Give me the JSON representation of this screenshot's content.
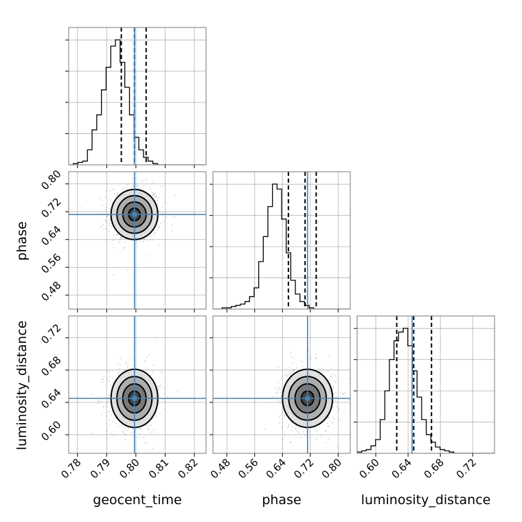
{
  "chart_data": {
    "type": "corner",
    "parameters": [
      {
        "name": "geocent_time",
        "label": "geocent_time",
        "range": [
          0.777,
          0.824
        ],
        "ticks": [
          0.78,
          0.79,
          0.8,
          0.81,
          0.82
        ],
        "tick_labels": [
          "0.78",
          "0.79",
          "0.80",
          "0.81",
          "0.82"
        ],
        "truth": 0.7995,
        "quantiles": [
          0.795,
          0.7995,
          0.8035
        ],
        "hist_edges_start": 0.777,
        "hist_bin_width": 0.0016,
        "hist_counts": [
          0,
          1,
          2,
          3,
          12,
          28,
          40,
          60,
          78,
          95,
          100,
          82,
          62,
          40,
          22,
          12,
          6,
          3,
          1,
          0,
          0,
          0,
          0,
          0,
          0,
          0,
          0,
          0,
          0
        ]
      },
      {
        "name": "phase",
        "label": "phase",
        "range": [
          0.44,
          0.835
        ],
        "ticks": [
          0.48,
          0.56,
          0.64,
          0.72,
          0.8
        ],
        "tick_labels": [
          "0.48",
          "0.56",
          "0.64",
          "0.72",
          "0.80"
        ],
        "truth": 0.712,
        "quantiles": [
          0.657,
          0.705,
          0.737
        ],
        "hist_edges_start": 0.44,
        "hist_bin_width": 0.01317,
        "hist_counts": [
          0,
          0,
          1,
          1,
          2,
          3,
          4,
          6,
          10,
          17,
          38,
          58,
          82,
          100,
          96,
          72,
          45,
          23,
          12,
          6,
          3,
          1,
          0,
          0,
          0,
          0,
          0,
          0,
          0,
          0
        ]
      },
      {
        "name": "luminosity_distance",
        "label": "luminosity_distance",
        "range": [
          0.577,
          0.747
        ],
        "ticks": [
          0.6,
          0.64,
          0.68,
          0.72
        ],
        "tick_labels": [
          "0.60",
          "0.64",
          "0.68",
          "0.72"
        ],
        "truth": 0.645,
        "quantiles": [
          0.626,
          0.647,
          0.669
        ],
        "hist_edges_start": 0.577,
        "hist_bin_width": 0.0057,
        "hist_counts": [
          1,
          2,
          3,
          6,
          11,
          27,
          50,
          75,
          90,
          97,
          100,
          86,
          66,
          45,
          27,
          15,
          9,
          5,
          3,
          2,
          1,
          0,
          0,
          0,
          0,
          0,
          0,
          0,
          0,
          0
        ]
      }
    ],
    "pairs": [
      {
        "x": "geocent_time",
        "y": "phase",
        "center": [
          0.7995,
          0.712
        ],
        "sigma": [
          0.004,
          0.036
        ]
      },
      {
        "x": "geocent_time",
        "y": "luminosity_distance",
        "center": [
          0.7995,
          0.645
        ],
        "sigma": [
          0.004,
          0.018
        ]
      },
      {
        "x": "phase",
        "y": "luminosity_distance",
        "center": [
          0.712,
          0.645
        ],
        "sigma": [
          0.036,
          0.018
        ]
      }
    ],
    "contour_levels_sigma": [
      0.5,
      1.0,
      1.5,
      2.0
    ],
    "contour_fill_colors": [
      "#3a3a3a",
      "#6e6e6e",
      "#a4a4a4",
      "#dcdcdc"
    ],
    "truth_color": "#4682b4",
    "quantile_style": "dashed",
    "grid": true
  }
}
